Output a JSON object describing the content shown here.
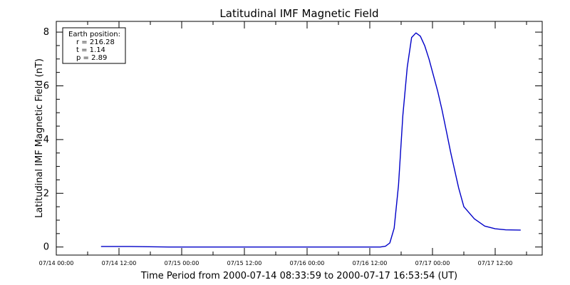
{
  "chart_data": {
    "type": "line",
    "title": "Latitudinal IMF Magnetic Field",
    "xlabel": "Time Period from 2000-07-14 08:33:59 to 2000-07-17 16:53:54 (UT)",
    "ylabel": "Latitudinal IMF Magnetic Field (nT)",
    "xlim": [
      "2000-07-14 00:00",
      "2000-07-17 21:00"
    ],
    "ylim": [
      -0.3,
      8.4
    ],
    "yticks": [
      0,
      2,
      4,
      6,
      8
    ],
    "xticks": [
      {
        "t": "2000-07-14 00:00",
        "label": "07/14 00:00"
      },
      {
        "t": "2000-07-14 12:00",
        "label": "07/14 12:00"
      },
      {
        "t": "2000-07-15 00:00",
        "label": "07/15 00:00"
      },
      {
        "t": "2000-07-15 12:00",
        "label": "07/15 12:00"
      },
      {
        "t": "2000-07-16 00:00",
        "label": "07/16 00:00"
      },
      {
        "t": "2000-07-16 12:00",
        "label": "07/16 12:00"
      },
      {
        "t": "2000-07-17 00:00",
        "label": "07/17 00:00"
      },
      {
        "t": "2000-07-17 12:00",
        "label": "07/17 12:00"
      }
    ],
    "legend": {
      "placement": "top-left",
      "lines": [
        "Earth position:",
        "r = 216.28",
        "t = 1.14",
        "p = 2.89"
      ]
    },
    "grid": false,
    "line_color": "#0000c8",
    "series": [
      {
        "x": [
          "2000-07-14 08:34",
          "2000-07-14 14:00",
          "2000-07-14 21:30",
          "2000-07-15 12:00",
          "2000-07-16 06:00",
          "2000-07-16 14:00",
          "2000-07-16 15:00",
          "2000-07-16 15:50",
          "2000-07-16 16:40",
          "2000-07-16 17:30",
          "2000-07-16 18:20",
          "2000-07-16 19:10",
          "2000-07-16 20:00",
          "2000-07-16 20:50",
          "2000-07-16 21:40",
          "2000-07-16 22:30",
          "2000-07-16 23:20",
          "2000-07-17 00:10",
          "2000-07-17 01:00",
          "2000-07-17 01:50",
          "2000-07-17 02:40",
          "2000-07-17 03:30",
          "2000-07-17 05:00",
          "2000-07-17 06:00",
          "2000-07-17 08:00",
          "2000-07-17 10:00",
          "2000-07-17 12:00",
          "2000-07-17 14:00",
          "2000-07-17 16:53"
        ],
        "values": [
          0.02,
          0.02,
          0.0,
          0.0,
          0.0,
          0.0,
          0.03,
          0.15,
          0.7,
          2.3,
          4.9,
          6.7,
          7.8,
          7.97,
          7.85,
          7.5,
          7.0,
          6.4,
          5.8,
          5.1,
          4.3,
          3.5,
          2.2,
          1.5,
          1.05,
          0.78,
          0.68,
          0.64,
          0.63
        ]
      }
    ]
  }
}
